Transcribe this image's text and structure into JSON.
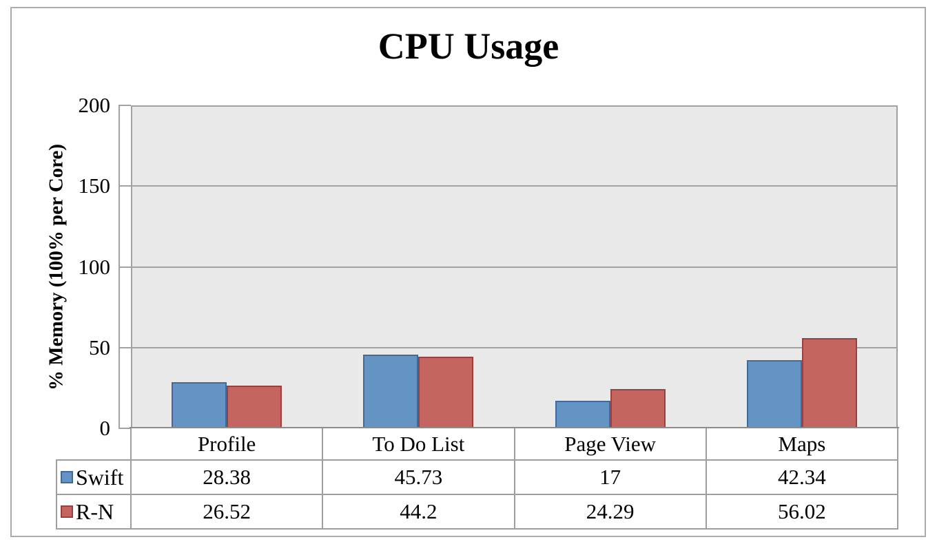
{
  "chart_data": {
    "type": "bar",
    "title": "CPU Usage",
    "ylabel": "% Memory (100% per Core)",
    "xlabel": "",
    "ylim": [
      0,
      200
    ],
    "yticks": [
      0,
      50,
      100,
      150,
      200
    ],
    "grid": true,
    "legend_position": "table-rows-left",
    "categories": [
      "Profile",
      "To Do List",
      "Page View",
      "Maps"
    ],
    "series": [
      {
        "name": "Swift",
        "values": [
          28.38,
          45.73,
          17,
          42.34
        ],
        "fill": "#6394c4",
        "border": "#41699b"
      },
      {
        "name": "R-N",
        "values": [
          26.52,
          44.2,
          24.29,
          56.02
        ],
        "fill": "#c5655f",
        "border": "#9c403e"
      }
    ],
    "value_labels": [
      [
        "28.38",
        "45.73",
        "17",
        "42.34"
      ],
      [
        "26.52",
        "44.2",
        "24.29",
        "56.02"
      ]
    ],
    "colors": {
      "plot_bg": "#e9e9e9",
      "grid": "#a1a1a1",
      "axis": "#8b8b8b",
      "table": "#9e9e9e",
      "frame": "#ababab",
      "text": "#000000"
    }
  }
}
